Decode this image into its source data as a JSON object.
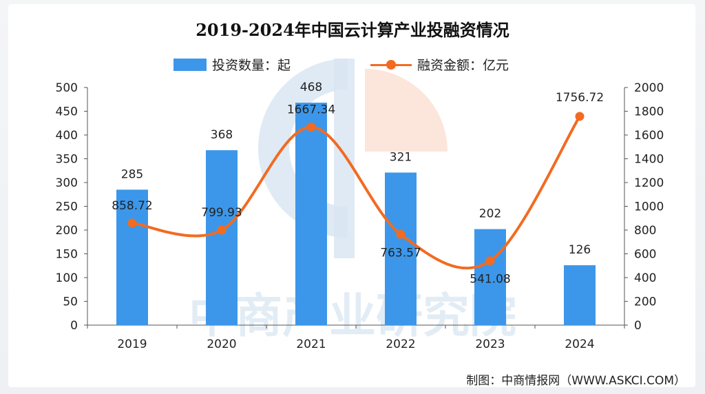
{
  "title": "2019-2024年中国云计算产业投融资情况",
  "credit": "制图：中商情报网（WWW.ASKCI.COM）",
  "watermark": "中商产业研究院",
  "colors": {
    "bar": "#3c97ea",
    "line": "#f26b21",
    "watermark": "#d9e6f2"
  },
  "chart_data": {
    "type": "bar",
    "title": "2019-2024年中国云计算产业投融资情况",
    "categories": [
      "2019",
      "2020",
      "2021",
      "2022",
      "2023",
      "2024"
    ],
    "series": [
      {
        "name": "投资数量：起",
        "type": "bar",
        "axis": "left",
        "values": [
          285,
          368,
          468,
          321,
          202,
          126
        ],
        "labels": [
          "285",
          "368",
          "468",
          "321",
          "202",
          "126"
        ]
      },
      {
        "name": "融资金额：亿元",
        "type": "line",
        "axis": "right",
        "values": [
          858.72,
          799.93,
          1667.34,
          763.57,
          541.08,
          1756.72
        ],
        "labels": [
          "858.72",
          "799.93",
          "1667.34",
          "763.57",
          "541.08",
          "1756.72"
        ]
      }
    ],
    "left_axis": {
      "ylim": [
        0,
        500
      ],
      "ticks": [
        "0",
        "50",
        "100",
        "150",
        "200",
        "250",
        "300",
        "350",
        "400",
        "450",
        "500"
      ]
    },
    "right_axis": {
      "ylim": [
        0,
        2000
      ],
      "ticks": [
        "0",
        "200",
        "400",
        "600",
        "800",
        "1000",
        "1200",
        "1400",
        "1600",
        "1800",
        "2000"
      ]
    },
    "legend_position": "top-center",
    "grid": false
  }
}
